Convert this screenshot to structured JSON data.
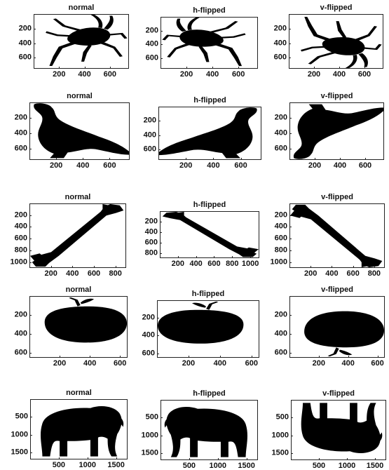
{
  "chart_data": [
    {
      "type": "image",
      "title": "normal",
      "xticks": [
        "200",
        "400",
        "600"
      ],
      "yticks": [
        "200",
        "400",
        "600"
      ],
      "xlim": [
        0,
        750
      ],
      "ylim": [
        0,
        750
      ],
      "shape": "beetle",
      "flip": "none"
    },
    {
      "type": "image",
      "title": "h-flipped",
      "xticks": [
        "200",
        "400",
        "600"
      ],
      "yticks": [
        "200",
        "400",
        "600"
      ],
      "xlim": [
        0,
        750
      ],
      "ylim": [
        0,
        750
      ],
      "shape": "beetle",
      "flip": "h"
    },
    {
      "type": "image",
      "title": "v-flipped",
      "xticks": [
        "200",
        "400",
        "600"
      ],
      "yticks": [
        "200",
        "400",
        "600"
      ],
      "xlim": [
        0,
        750
      ],
      "ylim": [
        0,
        750
      ],
      "shape": "beetle",
      "flip": "v"
    },
    {
      "type": "image",
      "title": "normal",
      "xticks": [
        "200",
        "400",
        "600"
      ],
      "yticks": [
        "200",
        "400",
        "600"
      ],
      "xlim": [
        0,
        750
      ],
      "ylim": [
        0,
        750
      ],
      "shape": "bird",
      "flip": "none"
    },
    {
      "type": "image",
      "title": "h-flipped",
      "xticks": [
        "200",
        "400",
        "600"
      ],
      "yticks": [
        "200",
        "400",
        "600"
      ],
      "xlim": [
        0,
        750
      ],
      "ylim": [
        0,
        750
      ],
      "shape": "bird",
      "flip": "h"
    },
    {
      "type": "image",
      "title": "v-flipped",
      "xticks": [
        "200",
        "400",
        "600"
      ],
      "yticks": [
        "200",
        "400",
        "600"
      ],
      "xlim": [
        0,
        750
      ],
      "ylim": [
        0,
        750
      ],
      "shape": "bird",
      "flip": "v"
    },
    {
      "type": "image",
      "title": "normal",
      "xticks": [
        "200",
        "400",
        "600",
        "800"
      ],
      "yticks": [
        "200",
        "400",
        "600",
        "800",
        "1000"
      ],
      "xlim": [
        0,
        900
      ],
      "ylim": [
        0,
        1100
      ],
      "shape": "bone",
      "flip": "none"
    },
    {
      "type": "image",
      "title": "h-flipped",
      "xticks": [
        "200",
        "400",
        "600",
        "800",
        "1000"
      ],
      "yticks": [
        "200",
        "400",
        "600",
        "800"
      ],
      "xlim": [
        0,
        1100
      ],
      "ylim": [
        0,
        900
      ],
      "shape": "bone",
      "flip": "h"
    },
    {
      "type": "image",
      "title": "v-flipped",
      "xticks": [
        "200",
        "400",
        "600",
        "800"
      ],
      "yticks": [
        "200",
        "400",
        "600",
        "800",
        "1000"
      ],
      "xlim": [
        0,
        900
      ],
      "ylim": [
        0,
        1100
      ],
      "shape": "bone",
      "flip": "v"
    },
    {
      "type": "image",
      "title": "normal",
      "xticks": [
        "200",
        "400",
        "600"
      ],
      "yticks": [
        "200",
        "400",
        "600"
      ],
      "xlim": [
        0,
        650
      ],
      "ylim": [
        0,
        650
      ],
      "shape": "apple",
      "flip": "none"
    },
    {
      "type": "image",
      "title": "h-flipped",
      "xticks": [
        "200",
        "400",
        "600"
      ],
      "yticks": [
        "200",
        "400",
        "600"
      ],
      "xlim": [
        0,
        650
      ],
      "ylim": [
        0,
        650
      ],
      "shape": "apple",
      "flip": "h"
    },
    {
      "type": "image",
      "title": "v-flipped",
      "xticks": [
        "200",
        "400",
        "600"
      ],
      "yticks": [
        "200",
        "400",
        "600"
      ],
      "xlim": [
        0,
        650
      ],
      "ylim": [
        0,
        650
      ],
      "shape": "apple",
      "flip": "v"
    },
    {
      "type": "image",
      "title": "normal",
      "xticks": [
        "500",
        "1000",
        "1500"
      ],
      "yticks": [
        "500",
        "1000",
        "1500"
      ],
      "xlim": [
        0,
        1700
      ],
      "ylim": [
        0,
        1700
      ],
      "shape": "elephant",
      "flip": "none"
    },
    {
      "type": "image",
      "title": "h-flipped",
      "xticks": [
        "500",
        "1000",
        "1500"
      ],
      "yticks": [
        "500",
        "1000",
        "1500"
      ],
      "xlim": [
        0,
        1700
      ],
      "ylim": [
        0,
        1700
      ],
      "shape": "elephant",
      "flip": "h"
    },
    {
      "type": "image",
      "title": "v-flipped",
      "xticks": [
        "500",
        "1000",
        "1500"
      ],
      "yticks": [
        "500",
        "1000",
        "1500"
      ],
      "xlim": [
        0,
        1700
      ],
      "ylim": [
        0,
        1700
      ],
      "shape": "elephant",
      "flip": "v"
    }
  ]
}
